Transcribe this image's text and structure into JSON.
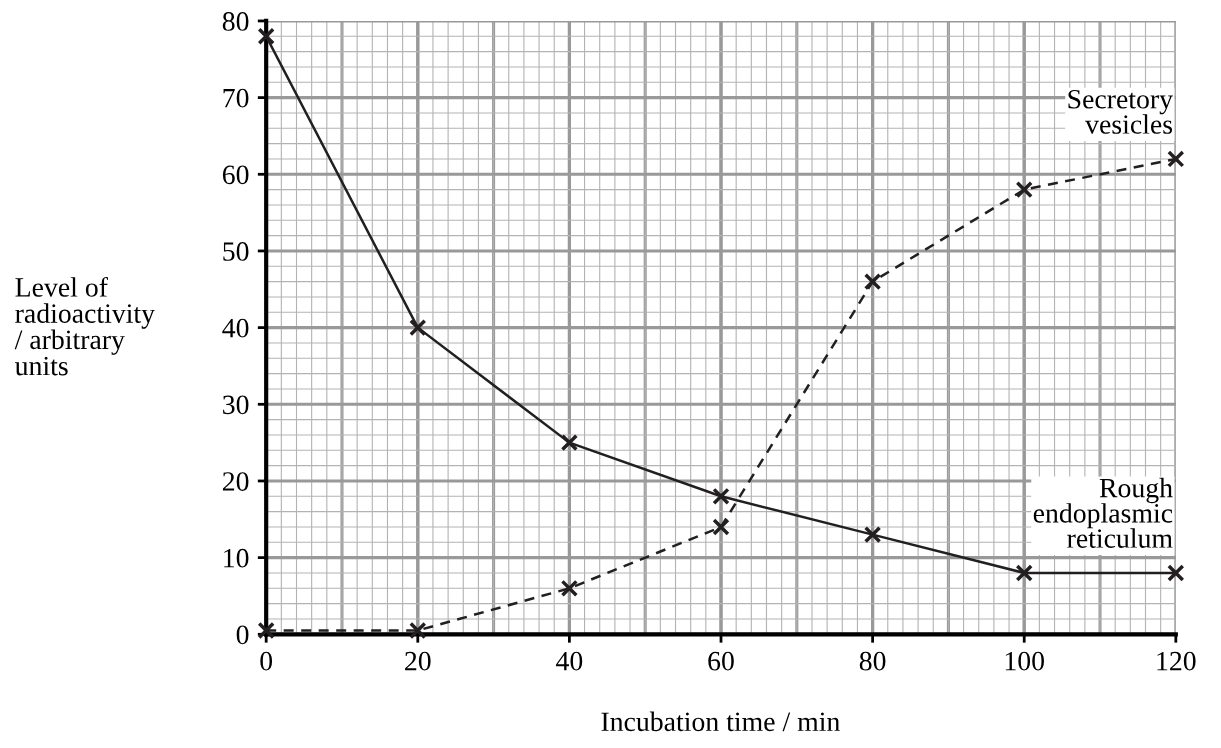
{
  "chart_data": {
    "type": "line",
    "xlabel": "Incubation time / min",
    "ylabel": "Level of\nradioactivity\n/ arbitrary\nunits",
    "x": [
      0,
      20,
      40,
      60,
      80,
      100,
      120
    ],
    "series": [
      {
        "name": "Rough\nendoplasmic\nreticulum",
        "color": "#231f20",
        "values": [
          78,
          40,
          25,
          18,
          13,
          8,
          8
        ],
        "line_style": "solid"
      },
      {
        "name": "Secretory\nvesicles",
        "color": "#231f20",
        "values": [
          0.5,
          0.5,
          6,
          14,
          46,
          58,
          62
        ],
        "line_style": "dashed"
      }
    ],
    "xlim": [
      0,
      120
    ],
    "ylim": [
      0,
      80
    ],
    "xticks": [
      0,
      20,
      40,
      60,
      80,
      100,
      120
    ],
    "yticks": [
      0,
      10,
      20,
      30,
      40,
      50,
      60,
      70,
      80
    ],
    "grid": true,
    "marker": "cross",
    "legend": false
  }
}
